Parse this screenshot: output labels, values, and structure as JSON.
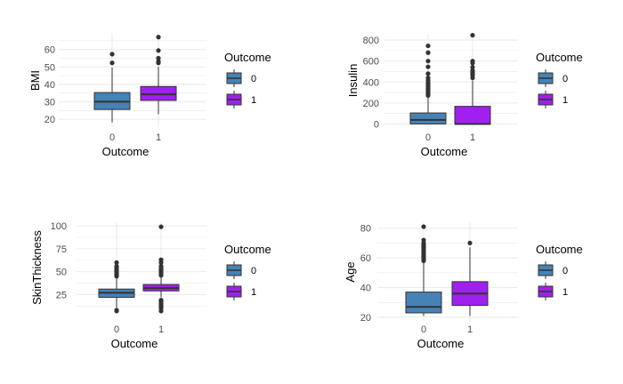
{
  "palette": {
    "outcome_0": "#4682B4",
    "outcome_1": "#A020F0",
    "line": "#333333",
    "grid": "#ebebeb"
  },
  "legend": {
    "title": "Outcome",
    "entries": [
      "0",
      "1"
    ]
  },
  "chart_data": [
    {
      "type": "box",
      "xlabel": "Outcome",
      "ylabel": "BMI",
      "categories": [
        "0",
        "1"
      ],
      "ylim": [
        15.5,
        69
      ],
      "yticks": [
        20,
        30,
        40,
        50,
        60
      ],
      "series": [
        {
          "name": "0",
          "whisker_low": 18.2,
          "q1": 25.6,
          "median": 30.1,
          "q3": 35.3,
          "whisker_high": 49.7,
          "outliers": [
            52.3,
            57.3
          ]
        },
        {
          "name": "1",
          "whisker_low": 22.9,
          "q1": 30.8,
          "median": 34.3,
          "q3": 38.8,
          "whisker_high": 50.0,
          "outliers": [
            52.3,
            53.2,
            55.0,
            59.4,
            67.1
          ]
        }
      ]
    },
    {
      "type": "box",
      "xlabel": "Outcome",
      "ylabel": "Insulin",
      "categories": [
        "0",
        "1"
      ],
      "ylim": [
        -30,
        860
      ],
      "yticks": [
        0,
        200,
        400,
        600,
        800
      ],
      "series": [
        {
          "name": "0",
          "whisker_low": 0,
          "q1": 0,
          "median": 39,
          "q3": 105,
          "whisker_high": 260,
          "outliers": [
            272,
            285,
            300,
            318,
            330,
            342,
            360,
            375,
            392,
            415,
            440,
            480,
            545,
            600,
            680,
            745
          ]
        },
        {
          "name": "1",
          "whisker_low": 0,
          "q1": 0,
          "median": 0,
          "q3": 168,
          "whisker_high": 415,
          "outliers": [
            440,
            465,
            480,
            495,
            510,
            540,
            580,
            600,
            846
          ]
        }
      ]
    },
    {
      "type": "box",
      "xlabel": "Outcome",
      "ylabel": "SkinThickness",
      "categories": [
        "0",
        "1"
      ],
      "ylim": [
        5,
        104
      ],
      "yticks": [
        25,
        50,
        75,
        100
      ],
      "series": [
        {
          "name": "0",
          "whisker_low": 11,
          "q1": 22,
          "median": 27,
          "q3": 31,
          "whisker_high": 43,
          "outliers": [
            7,
            8,
            45,
            46,
            47,
            48,
            50,
            51,
            52,
            54,
            56,
            60
          ]
        },
        {
          "name": "1",
          "whisker_low": 22,
          "q1": 29,
          "median": 32,
          "q3": 36,
          "whisker_high": 45,
          "outliers": [
            7,
            10,
            12,
            13,
            15,
            17,
            18,
            19,
            46,
            48,
            50,
            52,
            54,
            56,
            60,
            63,
            99
          ]
        }
      ]
    },
    {
      "type": "box",
      "xlabel": "Outcome",
      "ylabel": "Age",
      "categories": [
        "0",
        "1"
      ],
      "ylim": [
        17,
        84
      ],
      "yticks": [
        20,
        40,
        60,
        80
      ],
      "series": [
        {
          "name": "0",
          "whisker_low": 21,
          "q1": 23,
          "median": 27,
          "q3": 37,
          "whisker_high": 57,
          "outliers": [
            58,
            59,
            60,
            61,
            62,
            63,
            64,
            65,
            66,
            67,
            68,
            69,
            70,
            72,
            81
          ]
        },
        {
          "name": "1",
          "whisker_low": 21,
          "q1": 28,
          "median": 36,
          "q3": 44,
          "whisker_high": 67,
          "outliers": [
            70
          ]
        }
      ]
    }
  ]
}
